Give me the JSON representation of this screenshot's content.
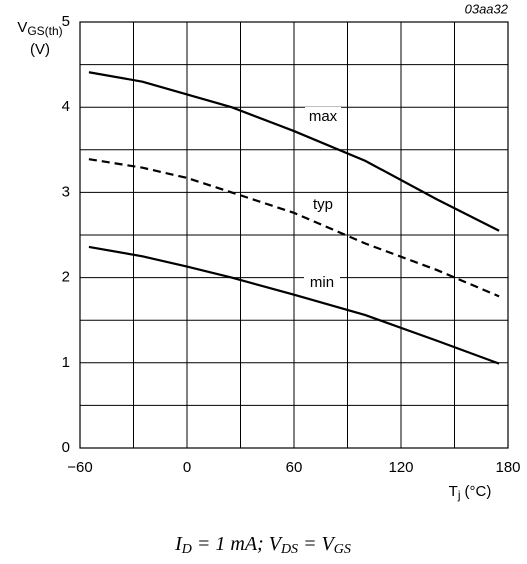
{
  "chart_data": {
    "type": "line",
    "code": "03aa32",
    "ylabel": {
      "symbol": "V",
      "subscript": "GS(th)",
      "unit": "(V)"
    },
    "xlabel": {
      "symbol": "T",
      "subscript": "j",
      "unit": "(°C)"
    },
    "footnote": [
      "I",
      "D",
      " = 1 mA; V",
      "DS",
      " = V",
      "GS"
    ],
    "xlim": [
      -60,
      180
    ],
    "ylim": [
      0,
      5
    ],
    "xticks": [
      {
        "value": -60,
        "label": "−60"
      },
      0,
      60,
      120,
      180
    ],
    "yticks": [
      0,
      1,
      2,
      3,
      4,
      5
    ],
    "xminorticks": [
      -30,
      30,
      90,
      150
    ],
    "yminorticks": [
      0.5,
      1.5,
      2.5,
      3.5,
      4.5
    ],
    "grid": true,
    "x": [
      -55,
      -25,
      0,
      25,
      60,
      100,
      140,
      175
    ],
    "series": [
      {
        "name": "max",
        "color": "#000000",
        "dash": false,
        "values": [
          4.41,
          4.3,
          4.15,
          4.0,
          3.72,
          3.37,
          2.92,
          2.55
        ]
      },
      {
        "name": "typ",
        "color": "#000000",
        "dash": true,
        "values": [
          3.39,
          3.29,
          3.17,
          3.0,
          2.76,
          2.4,
          2.09,
          1.78
        ]
      },
      {
        "name": "min",
        "color": "#000000",
        "dash": false,
        "values": [
          2.36,
          2.25,
          2.13,
          2.0,
          1.8,
          1.56,
          1.26,
          0.99
        ]
      }
    ]
  }
}
